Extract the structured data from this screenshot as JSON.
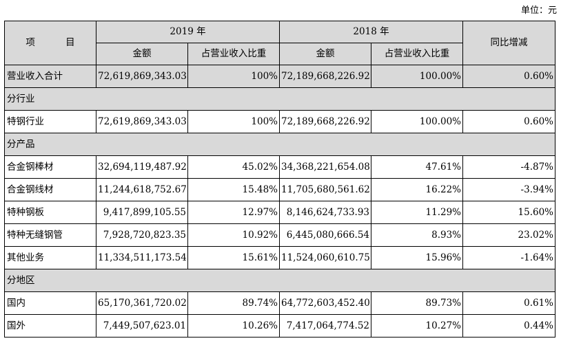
{
  "unit_label": "单位：元",
  "header": {
    "item": "项  目",
    "year_2019": "2019 年",
    "year_2018": "2018 年",
    "yoy": "同比增减",
    "amount": "金额",
    "ratio": "占营业收入比重"
  },
  "rows": [
    {
      "label": "营业收入合计",
      "a19": "72,619,869,343.03",
      "r19": "100%",
      "a18": "72,189,668,226.92",
      "r18": "100.00%",
      "yoy": "0.60%"
    },
    {
      "section": "分行业"
    },
    {
      "label": "特钢行业",
      "a19": "72,619,869,343.03",
      "r19": "100%",
      "a18": "72,189,668,226.92",
      "r18": "100.00%",
      "yoy": "0.60%"
    },
    {
      "section": "分产品"
    },
    {
      "label": "合金钢棒材",
      "a19": "32,694,119,487.92",
      "r19": "45.02%",
      "a18": "34,368,221,654.08",
      "r18": "47.61%",
      "yoy": "-4.87%"
    },
    {
      "label": "合金钢线材",
      "a19": "11,244,618,752.67",
      "r19": "15.48%",
      "a18": "11,705,680,561.62",
      "r18": "16.22%",
      "yoy": "-3.94%"
    },
    {
      "label": "特种钢板",
      "a19": "9,417,899,105.55",
      "r19": "12.97%",
      "a18": "8,146,624,733.93",
      "r18": "11.29%",
      "yoy": "15.60%"
    },
    {
      "label": "特种无缝钢管",
      "a19": "7,928,720,823.35",
      "r19": "10.92%",
      "a18": "6,445,080,666.54",
      "r18": "8.93%",
      "yoy": "23.02%"
    },
    {
      "label": "其他业务",
      "a19": "11,334,511,173.54",
      "r19": "15.61%",
      "a18": "11,524,060,610.75",
      "r18": "15.96%",
      "yoy": "-1.64%"
    },
    {
      "section": "分地区"
    },
    {
      "label": "国内",
      "a19": "65,170,361,720.02",
      "r19": "89.74%",
      "a18": "64,772,603,452.40",
      "r18": "89.73%",
      "yoy": "0.61%"
    },
    {
      "label": "国外",
      "a19": "7,449,507,623.01",
      "r19": "10.26%",
      "a18": "7,417,064,774.52",
      "r18": "10.27%",
      "yoy": "0.44%"
    }
  ]
}
